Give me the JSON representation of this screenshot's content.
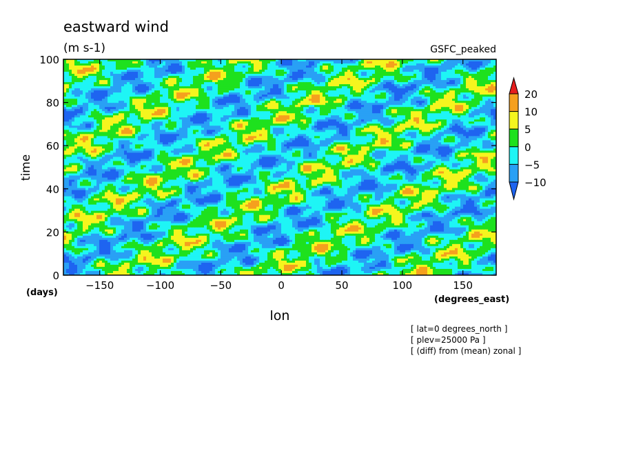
{
  "chart_data": {
    "type": "heatmap",
    "title": "eastward wind",
    "units": "(m s-1)",
    "dataset": "GSFC_peaked",
    "xlabel": "lon",
    "ylabel": "time",
    "x_units": "(degrees_east)",
    "y_units": "(days)",
    "xlim": [
      -180,
      177.5
    ],
    "ylim": [
      0,
      100
    ],
    "x_ticks": [
      -150,
      -100,
      -50,
      0,
      50,
      100,
      150
    ],
    "y_ticks": [
      0,
      20,
      40,
      60,
      80,
      100
    ],
    "colorbar": {
      "levels": [
        -10,
        -5,
        0,
        5,
        10,
        20
      ],
      "colors": [
        "#1e64f0",
        "#29a0f5",
        "#1ef5f5",
        "#1ee11e",
        "#f5f51e",
        "#f5a01e",
        "#e61e1e"
      ],
      "extend": "both"
    },
    "annotations": [
      "[ lat=0 degrees_north ]",
      "[ plev=25000 Pa ]",
      "[ (diff) from (mean) zonal ]"
    ]
  }
}
